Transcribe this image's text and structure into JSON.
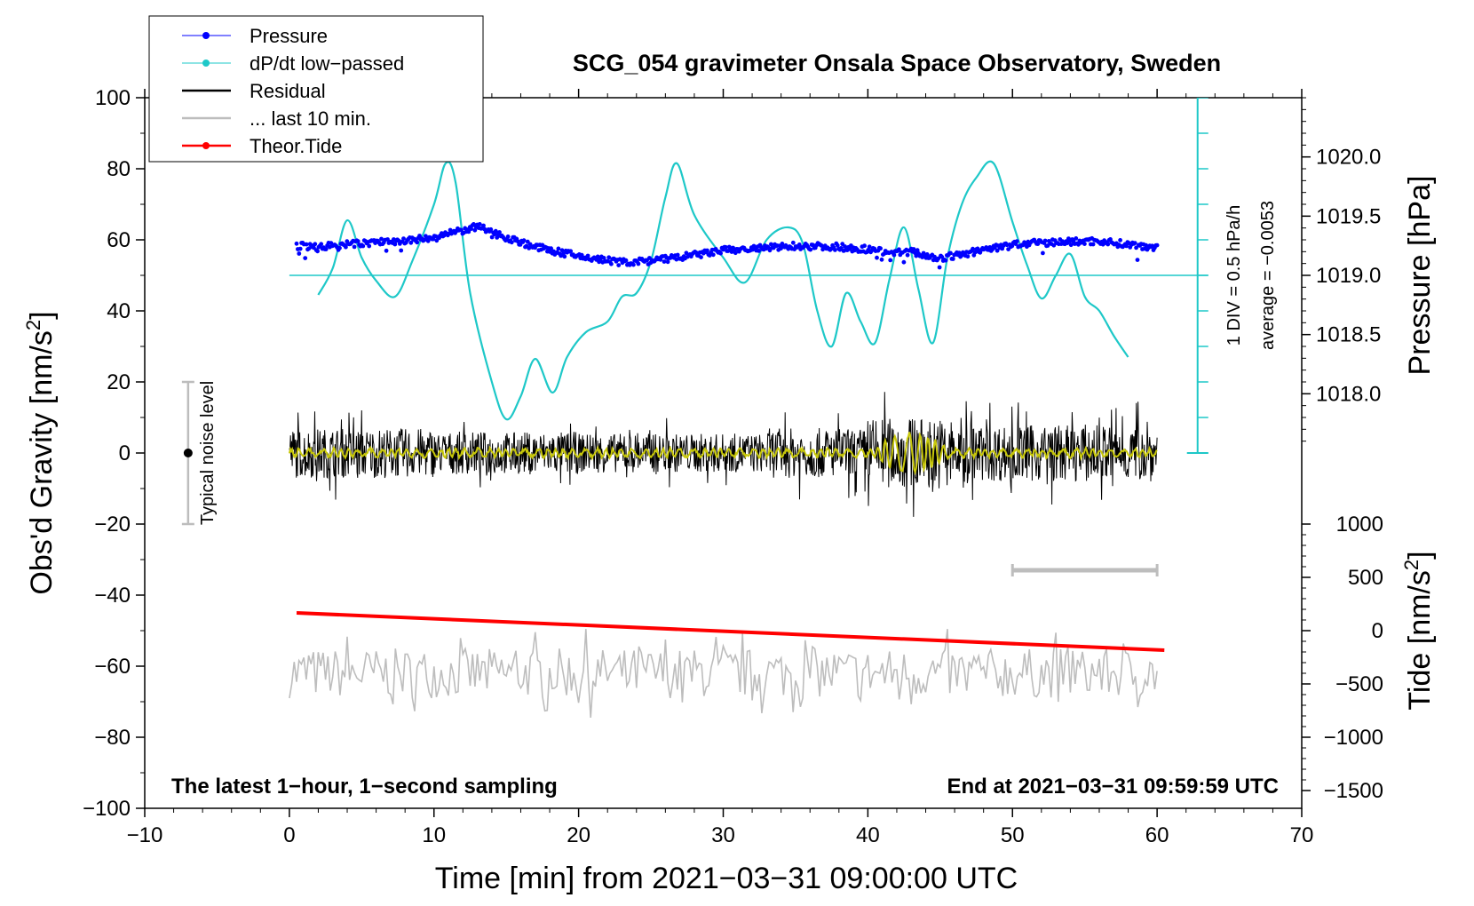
{
  "title": "SCG_054 gravimeter Onsala Space Observatory, Sweden",
  "colors": {
    "pressure": "#0000ff",
    "dpdt": "#1ec8c8",
    "residual": "#000000",
    "last10": "#bdbdbd",
    "theor": "#ff0000",
    "filtered": "#c8c80a",
    "noise_bar": "#bdbdbd"
  },
  "legend": [
    {
      "label": "Pressure",
      "series": "pressure",
      "marker": true
    },
    {
      "label": "dP/dt low−passed",
      "series": "dpdt",
      "marker": true
    },
    {
      "label": "Residual",
      "series": "residual",
      "marker": false
    },
    {
      "label": "... last 10 min.",
      "series": "last10",
      "marker": false
    },
    {
      "label": "Theor.Tide",
      "series": "theor",
      "marker": true
    }
  ],
  "annotations": {
    "noise": "Typical noise level",
    "dpdt_scale": "1 DIV = 0.5 hPa/h",
    "dpdt_average": "average = −0.0053",
    "bottom_left": "The latest 1−hour, 1−second sampling",
    "bottom_right": "End at 2021−03−31 09:59:59 UTC"
  },
  "chart_data": {
    "type": "line",
    "title": "SCG_054 gravimeter Onsala Space Observatory, Sweden",
    "xlabel": "Time [min] from 2021−03−31 09:00:00 UTC",
    "ylabel": "Obs'd Gravity [nm/s",
    "ylabel_sup": "2",
    "ylabel_end": "]",
    "y2label": "Pressure [hPa]",
    "y3label": "Tide [nm/s",
    "y3label_sup": "2",
    "y3label_end": "]",
    "xlim": [
      -10,
      70
    ],
    "ylim": [
      -100,
      100
    ],
    "xticks": [
      -10,
      0,
      10,
      20,
      30,
      40,
      50,
      60,
      70
    ],
    "xtick_labels": [
      "−10",
      "0",
      "10",
      "20",
      "30",
      "40",
      "50",
      "60",
      "70"
    ],
    "yticks": [
      -100,
      -80,
      -60,
      -40,
      -20,
      0,
      20,
      40,
      60,
      80,
      100
    ],
    "ytick_labels": [
      "−100",
      "−80",
      "−60",
      "−40",
      "−20",
      "0",
      "20",
      "40",
      "60",
      "80",
      "100"
    ],
    "pressure_axis": {
      "ticks": [
        1018.0,
        1018.5,
        1019.0,
        1019.5,
        1020.0
      ],
      "tick_labels": [
        "1018.0",
        "1018.5",
        "1019.0",
        "1019.5",
        "1020.0"
      ],
      "ref_value": 1019.0,
      "ref_gravity": 50,
      "gravity_per_hpa": 33.33
    },
    "tide_axis": {
      "ticks": [
        1000,
        500,
        0,
        -500,
        -1000,
        -1500
      ],
      "tick_labels": [
        "1000",
        "500",
        "0",
        "−500",
        "−1000",
        "−1500"
      ],
      "ref_value": 0,
      "ref_gravity": -50,
      "gravity_per_unit": 0.03
    },
    "dpdt_scale": {
      "baseline_gravity": 50,
      "x_min": 62.8,
      "y_top": 100,
      "y_bottom": 0,
      "div_step": 10
    },
    "pressure": {
      "x": [
        0.5,
        2,
        4,
        6,
        8,
        10,
        12,
        13,
        15,
        17,
        20,
        23,
        25,
        28,
        30,
        33,
        35,
        38,
        40,
        42,
        43,
        45,
        47,
        50,
        53,
        56,
        58,
        60
      ],
      "y": [
        1019.25,
        1019.24,
        1019.26,
        1019.28,
        1019.29,
        1019.32,
        1019.38,
        1019.41,
        1019.32,
        1019.24,
        1019.16,
        1019.11,
        1019.12,
        1019.17,
        1019.21,
        1019.23,
        1019.25,
        1019.24,
        1019.22,
        1019.19,
        1019.2,
        1019.14,
        1019.19,
        1019.26,
        1019.28,
        1019.29,
        1019.26,
        1019.24
      ]
    },
    "dpdt": {
      "x": [
        2,
        3,
        4,
        5,
        6,
        7.3,
        8.5,
        10,
        10.8,
        11.5,
        12.5,
        14,
        15,
        16,
        17,
        18.2,
        19.2,
        20.5,
        22,
        23,
        24,
        25,
        26,
        26.8,
        28,
        30,
        31.5,
        33,
        34.5,
        35.5,
        36.5,
        37.5,
        38.5,
        39.5,
        40.5,
        41.5,
        42.5,
        43.5,
        44.5,
        45.5,
        46.5,
        47.5,
        48.7,
        50,
        51,
        52,
        53,
        54,
        55,
        56,
        57,
        58
      ],
      "y": [
        44.5,
        52,
        65.5,
        55,
        48.5,
        44,
        54,
        70,
        81.5,
        76,
        45,
        20,
        9.5,
        16,
        26.5,
        17,
        27,
        34,
        37,
        44,
        45,
        54,
        72,
        81.5,
        67,
        55,
        48,
        60,
        63.5,
        59,
        40,
        30,
        45,
        37,
        31,
        49,
        63.5,
        46,
        31,
        55,
        70,
        77.5,
        81.5,
        65,
        53,
        43.5,
        50,
        56,
        44,
        40,
        33,
        27
      ]
    },
    "residual": {
      "x_start": 0,
      "x_end": 60,
      "samples": 1500,
      "mean": 0,
      "amplitude_segments": [
        {
          "x0": 0,
          "x1": 10,
          "amp": 7
        },
        {
          "x0": 10,
          "x1": 20,
          "amp": 6
        },
        {
          "x0": 20,
          "x1": 33,
          "amp": 5.5
        },
        {
          "x0": 33,
          "x1": 40,
          "amp": 7
        },
        {
          "x0": 40,
          "x1": 47,
          "amp": 10
        },
        {
          "x0": 47,
          "x1": 60,
          "amp": 8
        }
      ],
      "extremes": {
        "max": 18.5,
        "min": -21.5
      }
    },
    "residual_filtered": {
      "x_start": 0,
      "x_end": 60,
      "mean": 0,
      "amp_quiet": 1.0,
      "amp_burst": 5.5,
      "burst_range": [
        40,
        46
      ]
    },
    "last10": {
      "x_start": 0,
      "x_end": 60,
      "samples": 360,
      "mean": -62,
      "amp": 7,
      "max": -46.5,
      "min": -78.5
    },
    "theor_tide": {
      "x": [
        0.5,
        60.5
      ],
      "y": [
        -45,
        -55.5
      ]
    },
    "noise_level": {
      "x": -7,
      "y_low": -20,
      "y_high": 20,
      "center": 0
    },
    "last10_bar": {
      "x0": 50,
      "x1": 60,
      "y": -33
    }
  }
}
